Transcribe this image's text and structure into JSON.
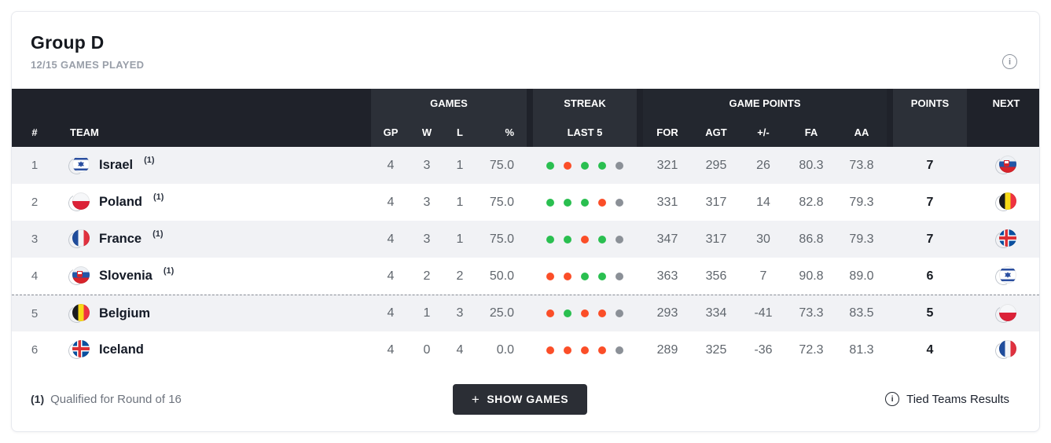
{
  "header": {
    "title": "Group D",
    "subtitle": "12/15 GAMES PLAYED"
  },
  "table": {
    "group_headers": {
      "games": "GAMES",
      "streak": "STREAK",
      "game_points": "GAME POINTS",
      "points": "POINTS",
      "next": "NEXT"
    },
    "columns": {
      "rank": "#",
      "team": "TEAM",
      "gp": "GP",
      "w": "W",
      "l": "L",
      "pct": "%",
      "last5": "LAST 5",
      "for": "FOR",
      "agt": "AGT",
      "plus_minus": "+/-",
      "fa": "FA",
      "aa": "AA"
    },
    "rows": [
      {
        "rank": "1",
        "team": "Israel",
        "qualified_mark": "(1)",
        "flag": "israel",
        "gp": "4",
        "w": "3",
        "l": "1",
        "pct": "75.0",
        "last5": [
          "w",
          "l",
          "w",
          "w",
          "n"
        ],
        "for": "321",
        "agt": "295",
        "plus_minus": "26",
        "fa": "80.3",
        "aa": "73.8",
        "points": "7",
        "next_flag": "slovenia"
      },
      {
        "rank": "2",
        "team": "Poland",
        "qualified_mark": "(1)",
        "flag": "poland",
        "gp": "4",
        "w": "3",
        "l": "1",
        "pct": "75.0",
        "last5": [
          "w",
          "w",
          "w",
          "l",
          "n"
        ],
        "for": "331",
        "agt": "317",
        "plus_minus": "14",
        "fa": "82.8",
        "aa": "79.3",
        "points": "7",
        "next_flag": "belgium"
      },
      {
        "rank": "3",
        "team": "France",
        "qualified_mark": "(1)",
        "flag": "france",
        "gp": "4",
        "w": "3",
        "l": "1",
        "pct": "75.0",
        "last5": [
          "w",
          "w",
          "l",
          "w",
          "n"
        ],
        "for": "347",
        "agt": "317",
        "plus_minus": "30",
        "fa": "86.8",
        "aa": "79.3",
        "points": "7",
        "next_flag": "iceland"
      },
      {
        "rank": "4",
        "team": "Slovenia",
        "qualified_mark": "(1)",
        "flag": "slovenia",
        "gp": "4",
        "w": "2",
        "l": "2",
        "pct": "50.0",
        "last5": [
          "l",
          "l",
          "w",
          "w",
          "n"
        ],
        "for": "363",
        "agt": "356",
        "plus_minus": "7",
        "fa": "90.8",
        "aa": "89.0",
        "points": "6",
        "next_flag": "israel"
      },
      {
        "rank": "5",
        "team": "Belgium",
        "qualified_mark": "",
        "flag": "belgium",
        "gp": "4",
        "w": "1",
        "l": "3",
        "pct": "25.0",
        "last5": [
          "l",
          "w",
          "l",
          "l",
          "n"
        ],
        "for": "293",
        "agt": "334",
        "plus_minus": "-41",
        "fa": "73.3",
        "aa": "83.5",
        "points": "5",
        "next_flag": "poland"
      },
      {
        "rank": "6",
        "team": "Iceland",
        "qualified_mark": "",
        "flag": "iceland",
        "gp": "4",
        "w": "0",
        "l": "4",
        "pct": "0.0",
        "last5": [
          "l",
          "l",
          "l",
          "l",
          "n"
        ],
        "for": "289",
        "agt": "325",
        "plus_minus": "-36",
        "fa": "72.3",
        "aa": "81.3",
        "points": "4",
        "next_flag": "france"
      }
    ]
  },
  "footer": {
    "note_mark": "(1)",
    "note_text": "Qualified for Round of 16",
    "plus_icon": "+",
    "show_games_label": "SHOW GAMES",
    "info_icon": "i",
    "tied_teams_label": "Tied Teams Results"
  },
  "icons": {
    "top_info": "i"
  },
  "colors": {
    "win_dot": "#2abf50",
    "loss_dot": "#fb4e28",
    "empty_dot": "#8b9097",
    "header_bg": "#1f222a",
    "header_band": "#2c3038",
    "stripe_row": "#f1f2f5"
  }
}
